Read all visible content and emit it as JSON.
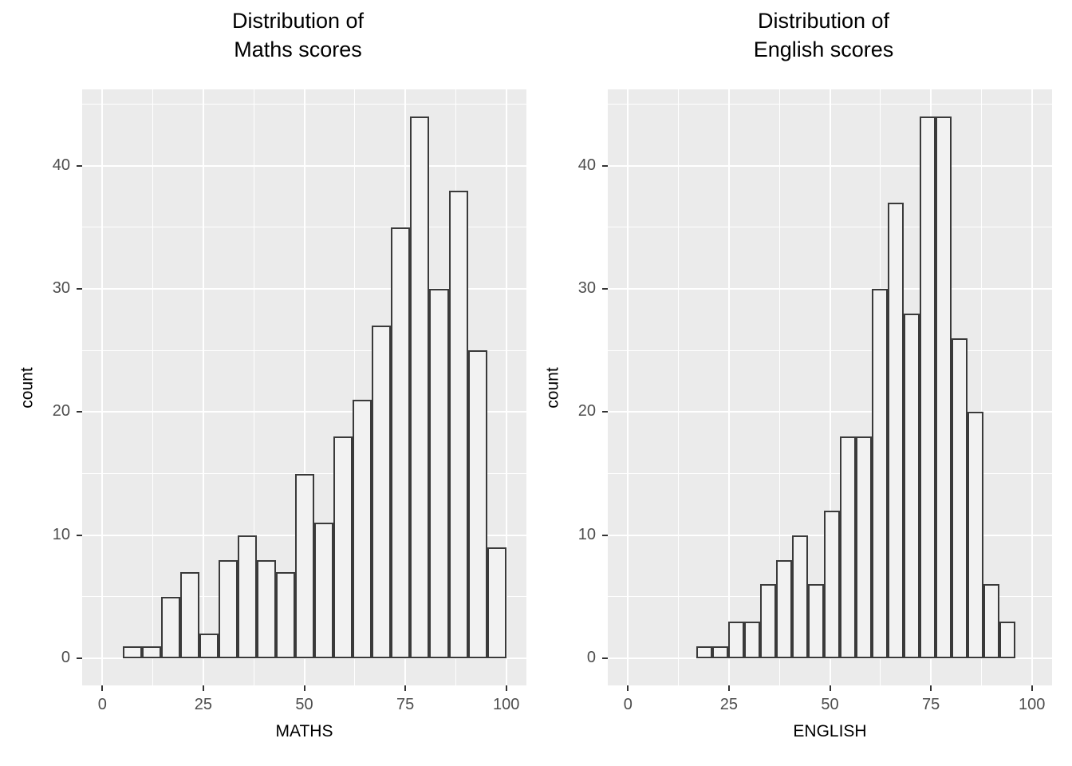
{
  "style": {
    "page_bg": "#ffffff",
    "panel_bg": "#ebebeb",
    "grid_color": "#ffffff",
    "bar_fill": "#f2f2f2",
    "bar_stroke": "#3a3a3a",
    "tick_mark": "#333333",
    "tick_label": "#4d4d4d"
  },
  "chart_data": [
    {
      "type": "bar",
      "subtype": "histogram",
      "title_lines": [
        "Distribution of",
        "Maths scores"
      ],
      "title": "Distribution of Maths scores",
      "xlabel": "MATHS",
      "ylabel": "count",
      "bin_start": 5,
      "bin_width": 4.75,
      "values": [
        1,
        1,
        5,
        7,
        2,
        8,
        10,
        8,
        7,
        15,
        11,
        18,
        21,
        27,
        35,
        44,
        30,
        38,
        25,
        9
      ],
      "x_ticks": [
        0,
        25,
        50,
        75,
        100
      ],
      "y_ticks": [
        0,
        10,
        20,
        30,
        40
      ],
      "x_minor": [
        12.5,
        37.5,
        62.5,
        87.5
      ],
      "y_minor": [
        5,
        15,
        25,
        35,
        45
      ],
      "xlim": [
        -5,
        105
      ],
      "ylim": [
        -2.2,
        46.2
      ],
      "grid": "on",
      "legend": "none"
    },
    {
      "type": "bar",
      "subtype": "histogram",
      "title_lines": [
        "Distribution of",
        "English scores"
      ],
      "title": "Distribution of English scores",
      "xlabel": "ENGLISH",
      "ylabel": "count",
      "bin_start": 17,
      "bin_width": 3.95,
      "values": [
        1,
        1,
        3,
        3,
        6,
        8,
        10,
        6,
        12,
        18,
        18,
        30,
        37,
        28,
        44,
        44,
        26,
        20,
        6,
        3
      ],
      "x_ticks": [
        0,
        25,
        50,
        75,
        100
      ],
      "y_ticks": [
        0,
        10,
        20,
        30,
        40
      ],
      "x_minor": [
        12.5,
        37.5,
        62.5,
        87.5
      ],
      "y_minor": [
        5,
        15,
        25,
        35,
        45
      ],
      "xlim": [
        -5,
        105
      ],
      "ylim": [
        -2.2,
        46.2
      ],
      "grid": "on",
      "legend": "none"
    }
  ]
}
